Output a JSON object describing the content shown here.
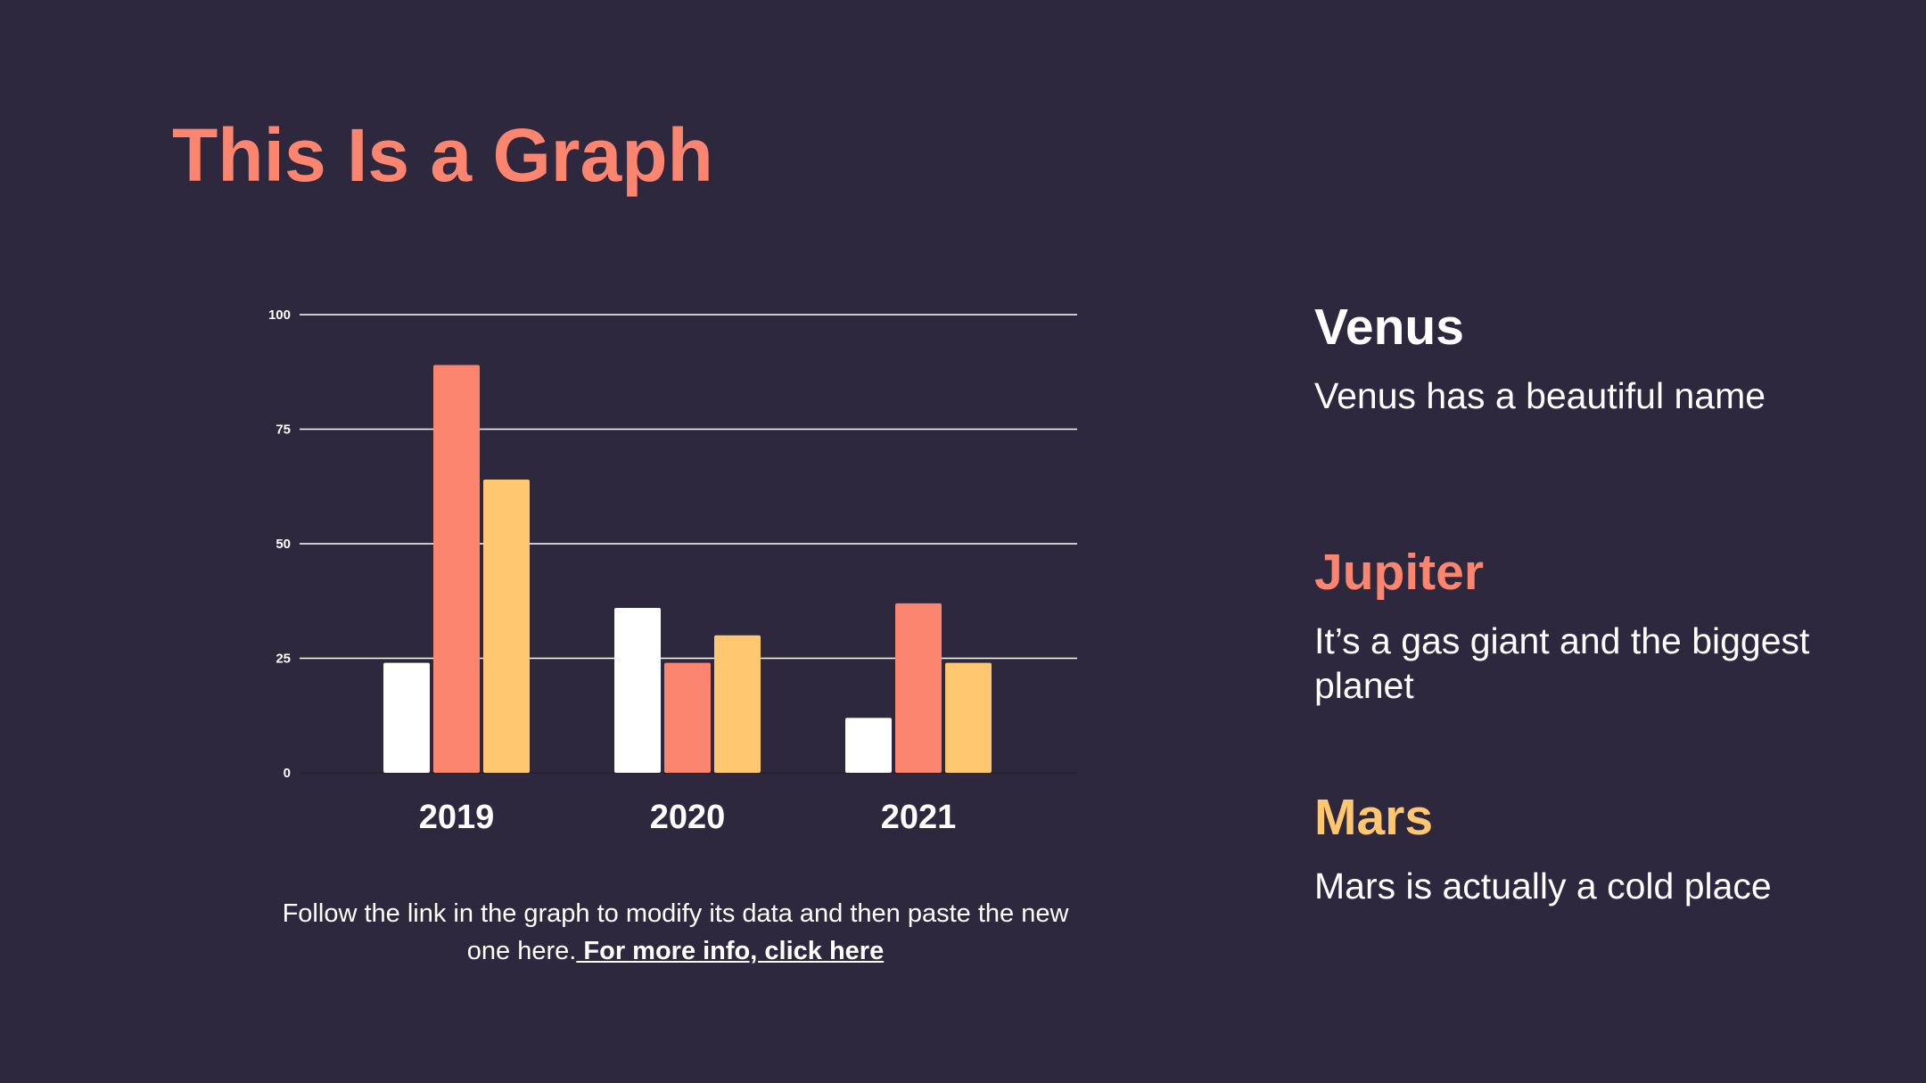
{
  "slide": {
    "title": "This Is a Graph",
    "caption_text": "Follow the link in the graph to modify its data and then paste the new one here.",
    "caption_link": " For more info, click here"
  },
  "planets": [
    {
      "name": "Venus",
      "description": "Venus has a beautiful name",
      "color": "#ffffff"
    },
    {
      "name": "Jupiter",
      "description": "It’s a gas giant and the biggest planet",
      "color": "#fc8570"
    },
    {
      "name": "Mars",
      "description": "Mars is actually a cold place",
      "color": "#ffc76f"
    }
  ],
  "chart_data": {
    "type": "bar",
    "categories": [
      "2019",
      "2020",
      "2021"
    ],
    "series": [
      {
        "color": "#ffffff",
        "values": [
          24,
          36,
          12
        ]
      },
      {
        "color": "#fc8570",
        "values": [
          89,
          24,
          37
        ]
      },
      {
        "color": "#ffc76f",
        "values": [
          64,
          30,
          24
        ]
      }
    ],
    "ylim": [
      0,
      100
    ],
    "yticks": [
      0,
      25,
      50,
      75,
      100
    ],
    "grid": true,
    "legend": "none"
  }
}
